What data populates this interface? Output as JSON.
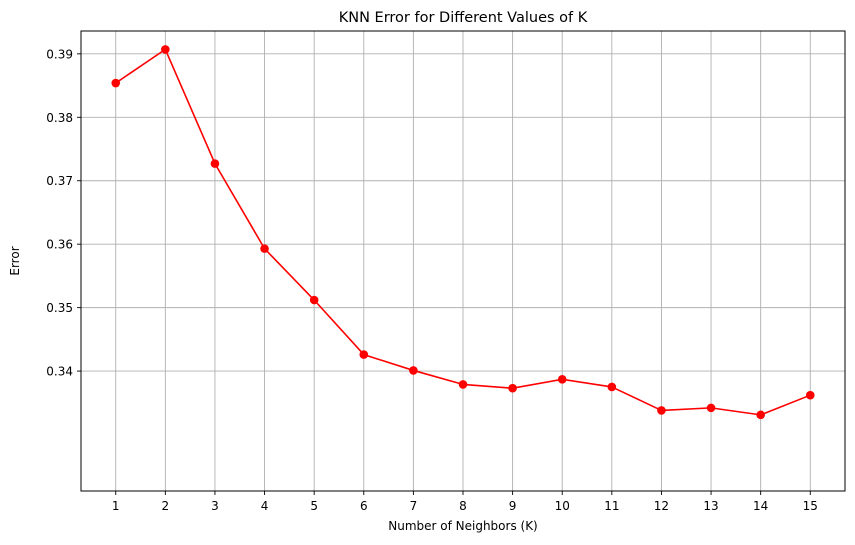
{
  "chart_data": {
    "type": "line",
    "title": "KNN Error for Different Values of K",
    "xlabel": "Number of Neighbors (K)",
    "ylabel": "Error",
    "x": [
      1,
      2,
      3,
      4,
      5,
      6,
      7,
      8,
      9,
      10,
      11,
      12,
      13,
      14,
      15
    ],
    "xticks": [
      "1",
      "2",
      "3",
      "4",
      "5",
      "6",
      "7",
      "8",
      "9",
      "10",
      "11",
      "12",
      "13",
      "14",
      "15"
    ],
    "yticks": [
      0.34,
      0.35,
      0.36,
      0.37,
      0.38,
      0.39
    ],
    "ytick_labels": [
      "0.34",
      "0.35",
      "0.36",
      "0.37",
      "0.38",
      "0.39"
    ],
    "xlim": [
      0.3,
      15.7
    ],
    "ylim": [
      0.3211,
      0.3936
    ],
    "grid": true,
    "series": [
      {
        "values": [
          0.3854,
          0.3907,
          0.3727,
          0.3593,
          0.3512,
          0.3426,
          0.3401,
          0.3379,
          0.3373,
          0.3387,
          0.3375,
          0.3338,
          0.3342,
          0.3331,
          0.3362
        ],
        "color": "#ff0000",
        "marker": "circle"
      }
    ],
    "colors": {
      "grid": "#b0b0b0",
      "axis": "#000000",
      "line": "#ff0000"
    }
  }
}
